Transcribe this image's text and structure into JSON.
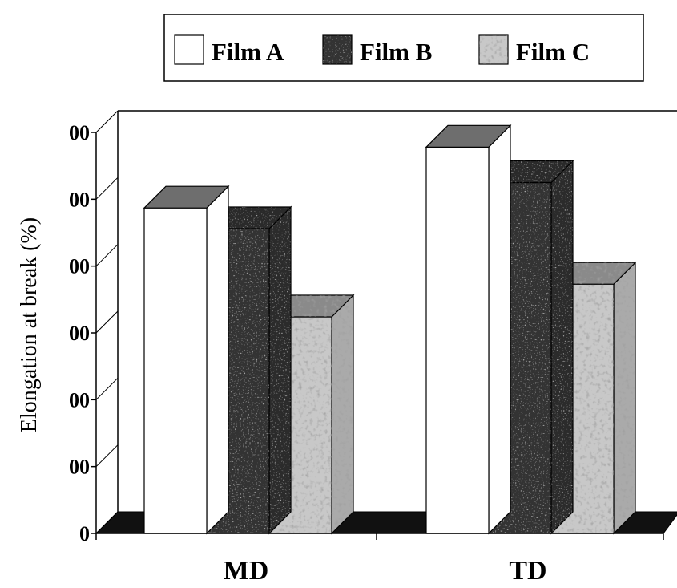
{
  "chart_data": {
    "type": "bar",
    "style": "3d",
    "categories": [
      "MD",
      "TD"
    ],
    "series": [
      {
        "name": "Film A",
        "values": [
          487,
          578
        ],
        "color": "#ffffff",
        "pattern": "none"
      },
      {
        "name": "Film B",
        "values": [
          456,
          525
        ],
        "color": "#333333",
        "pattern": "dark-mottled"
      },
      {
        "name": "Film C",
        "values": [
          324,
          373
        ],
        "color": "#c8c8c8",
        "pattern": "light-mottled"
      }
    ],
    "ylabel": "Elongation at break (%)",
    "ylim": [
      0,
      600
    ],
    "yticks": [
      0,
      100,
      200,
      300,
      400,
      500,
      600
    ],
    "ytick_labels": [
      "0",
      "00",
      "00",
      "00",
      "00",
      "00",
      "00"
    ],
    "legend_position": "top",
    "grid": false
  }
}
